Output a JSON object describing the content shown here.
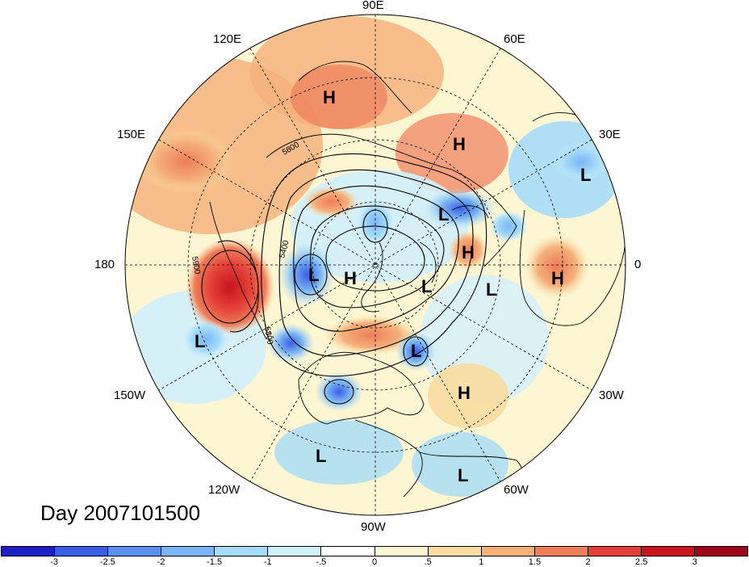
{
  "map": {
    "day_label": "Day 2007101500",
    "longitude_labels": {
      "e90": "90E",
      "e120": "120E",
      "e60": "60E",
      "e150": "150E",
      "e30": "30E",
      "w180": "180",
      "zero": "0",
      "w150": "150W",
      "w30": "30W",
      "w120": "120W",
      "w60": "60W",
      "w90": "90W"
    },
    "contour_labels": [
      "5800",
      "5400",
      "5900",
      "5800"
    ],
    "pressure_centers": [
      {
        "type": "H"
      },
      {
        "type": "H"
      },
      {
        "type": "L"
      },
      {
        "type": "L"
      },
      {
        "type": "H"
      },
      {
        "type": "L"
      },
      {
        "type": "H"
      },
      {
        "type": "L"
      },
      {
        "type": "L"
      },
      {
        "type": "H"
      },
      {
        "type": "L"
      },
      {
        "type": "L"
      },
      {
        "type": "H"
      },
      {
        "type": "L"
      },
      {
        "type": "L"
      }
    ]
  },
  "colorbar": {
    "ticks": [
      "-3",
      "-2.5",
      "-2",
      "-1.5",
      "-1",
      "-.5",
      "0",
      ".5",
      "1",
      "1.5",
      "2",
      "2.5",
      "3"
    ],
    "colors": [
      "#1f1fc8",
      "#3a5ee6",
      "#5b8ff0",
      "#7ab6f5",
      "#a6dcf8",
      "#d2f0fb",
      "#ffffff",
      "#fdf6d2",
      "#f8dca0",
      "#f5b07a",
      "#ee7d5a",
      "#e44038",
      "#c8141e",
      "#a0061a"
    ]
  }
}
